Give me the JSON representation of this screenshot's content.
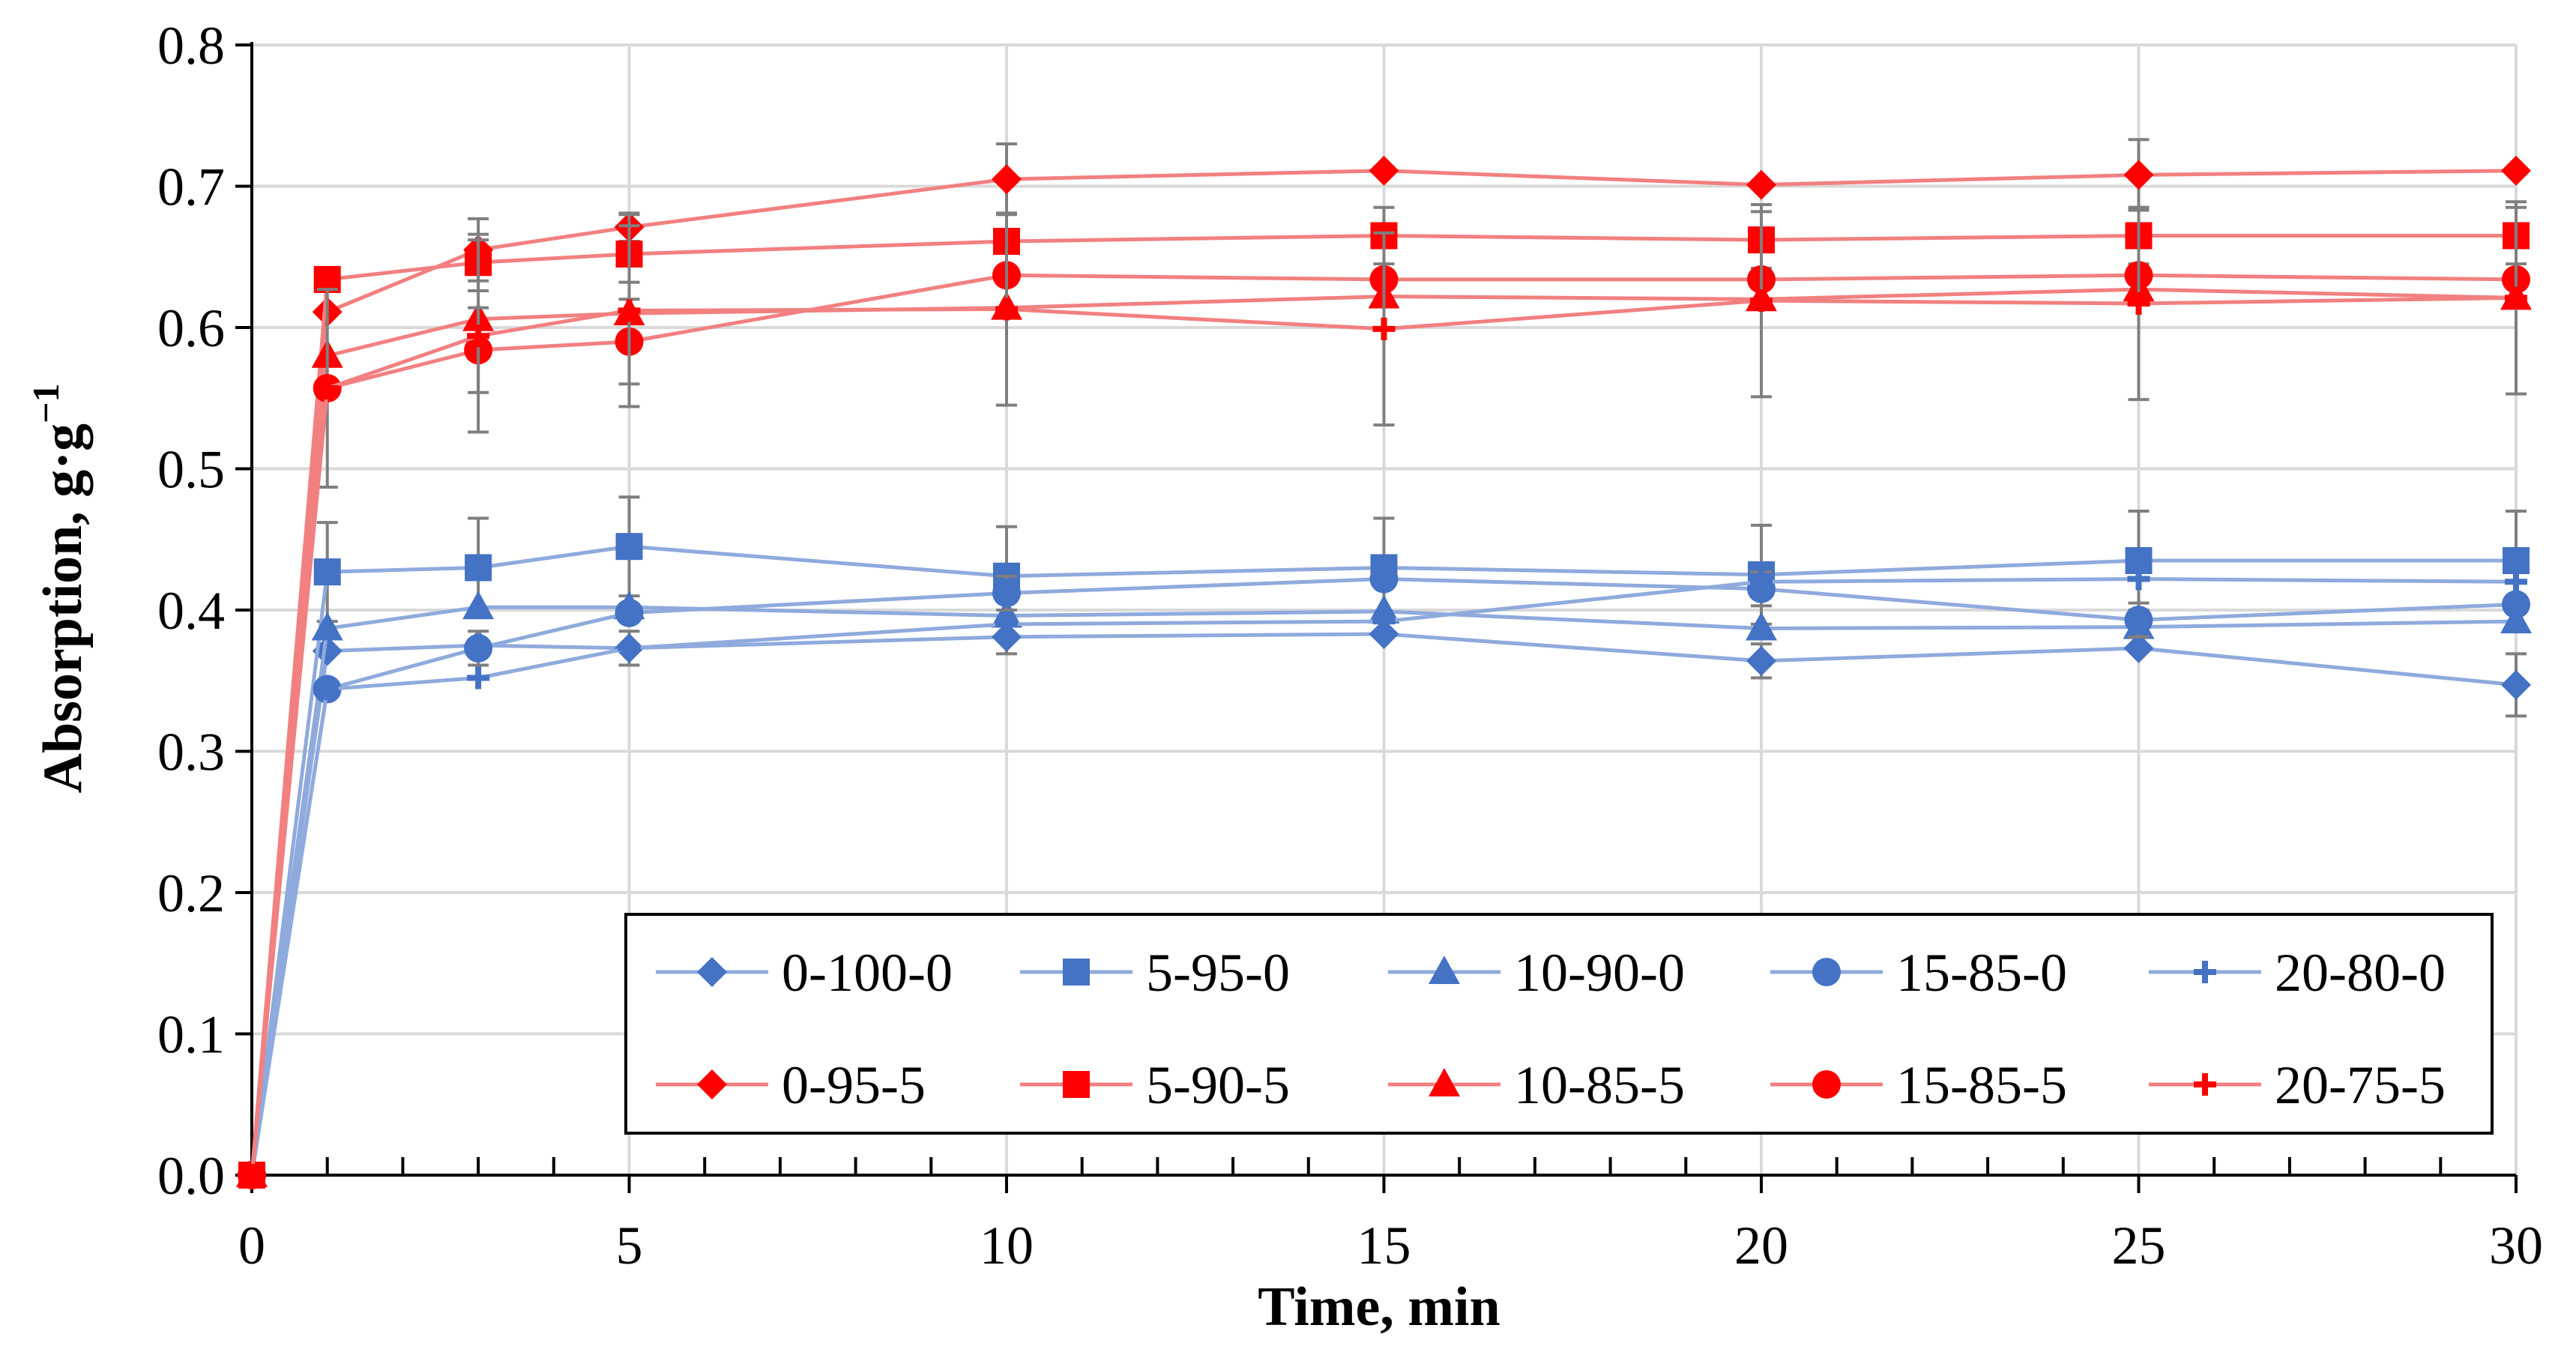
{
  "chart_data": {
    "type": "line",
    "title": "",
    "xlabel": "Time, min",
    "ylabel": "Absorption, g·g",
    "ylabel_sup": "−1",
    "xlim": [
      0,
      30
    ],
    "ylim": [
      0,
      0.8
    ],
    "x_ticks": [
      0,
      5,
      10,
      15,
      20,
      25,
      30
    ],
    "x_tick_labels": [
      "0",
      "5",
      "10",
      "15",
      "20",
      "25",
      "30"
    ],
    "x_minor_ticks": [
      1,
      2,
      3,
      4,
      6,
      7,
      8,
      9,
      11,
      12,
      13,
      14,
      16,
      17,
      18,
      19,
      21,
      22,
      23,
      24,
      26,
      27,
      28,
      29
    ],
    "y_ticks": [
      0,
      0.1,
      0.2,
      0.3,
      0.4,
      0.5,
      0.6,
      0.7,
      0.8
    ],
    "y_tick_labels": [
      "0.0",
      "0.1",
      "0.2",
      "0.3",
      "0.4",
      "0.5",
      "0.6",
      "0.7",
      "0.8"
    ],
    "grid": true,
    "legend_position": "lower-right",
    "x": [
      0,
      1,
      3,
      5,
      10,
      15,
      20,
      25,
      30
    ],
    "series": [
      {
        "name": "0-100-0",
        "color": "#4472c4",
        "line_color": "#8faadc",
        "marker": "diamond",
        "values": [
          0,
          0.371,
          0.375,
          0.373,
          0.381,
          0.383,
          0.364,
          0.373,
          0.347
        ],
        "errors": [
          0,
          0,
          0,
          0.012,
          0.012,
          0,
          0.012,
          0,
          0.022
        ]
      },
      {
        "name": "5-95-0",
        "color": "#4472c4",
        "line_color": "#8faadc",
        "marker": "square",
        "values": [
          0,
          0.427,
          0.43,
          0.445,
          0.424,
          0.43,
          0.425,
          0.435,
          0.435
        ],
        "errors": [
          0,
          0.035,
          0.035,
          0.035,
          0.035,
          0.035,
          0.035,
          0.035,
          0.035
        ]
      },
      {
        "name": "10-90-0",
        "color": "#4472c4",
        "line_color": "#8faadc",
        "marker": "triangle",
        "values": [
          0,
          0.387,
          0.402,
          0.402,
          0.396,
          0.399,
          0.387,
          0.388,
          0.392
        ],
        "errors": [
          0,
          0,
          0,
          0,
          0,
          0,
          0,
          0,
          0
        ]
      },
      {
        "name": "15-85-0",
        "color": "#4472c4",
        "line_color": "#8faadc",
        "marker": "circle",
        "values": [
          0,
          0.344,
          0.373,
          0.398,
          0.412,
          0.422,
          0.415,
          0.393,
          0.404
        ],
        "errors": [
          0,
          0,
          0.012,
          0,
          0.012,
          0,
          0.012,
          0.012,
          0
        ]
      },
      {
        "name": "20-80-0",
        "color": "#4472c4",
        "line_color": "#8faadc",
        "marker": "plus",
        "values": [
          0,
          0.344,
          0.352,
          0.373,
          0.39,
          0.392,
          0.42,
          0.422,
          0.42
        ],
        "errors": [
          0,
          0,
          0,
          0,
          0,
          0,
          0,
          0,
          0
        ]
      },
      {
        "name": "0-95-5",
        "color": "#ff0000",
        "line_color": "#f28080",
        "marker": "diamond",
        "values": [
          0,
          0.611,
          0.655,
          0.671,
          0.705,
          0.711,
          0.701,
          0.708,
          0.711
        ],
        "errors": [
          0,
          0,
          0.022,
          0.01,
          0.025,
          0,
          0,
          0.025,
          0
        ]
      },
      {
        "name": "5-90-5",
        "color": "#ff0000",
        "line_color": "#f28080",
        "marker": "square",
        "values": [
          0,
          0.634,
          0.646,
          0.652,
          0.661,
          0.665,
          0.662,
          0.665,
          0.665
        ],
        "errors": [
          0,
          0,
          0.02,
          0.02,
          0.02,
          0.02,
          0.02,
          0.02,
          0.02
        ]
      },
      {
        "name": "10-85-5",
        "color": "#ff0000",
        "line_color": "#f28080",
        "marker": "triangle",
        "values": [
          0,
          0.58,
          0.606,
          0.61,
          0.614,
          0.622,
          0.62,
          0.627,
          0.621
        ],
        "errors": [
          0,
          0,
          0,
          0,
          0,
          0,
          0,
          0,
          0
        ]
      },
      {
        "name": "15-85-5",
        "color": "#ff0000",
        "line_color": "#f28080",
        "marker": "circle",
        "values": [
          0,
          0.557,
          0.584,
          0.59,
          0.637,
          0.634,
          0.634,
          0.637,
          0.634
        ],
        "errors": [
          0,
          0.07,
          0.03,
          0.03,
          0,
          0,
          0,
          0,
          0
        ]
      },
      {
        "name": "20-75-5",
        "color": "#ff0000",
        "line_color": "#f28080",
        "marker": "plus",
        "values": [
          0,
          0.557,
          0.594,
          0.612,
          0.613,
          0.599,
          0.619,
          0.617,
          0.621
        ],
        "errors": [
          0,
          0,
          0.068,
          0.068,
          0.068,
          0.068,
          0.068,
          0.068,
          0.068
        ]
      }
    ]
  }
}
